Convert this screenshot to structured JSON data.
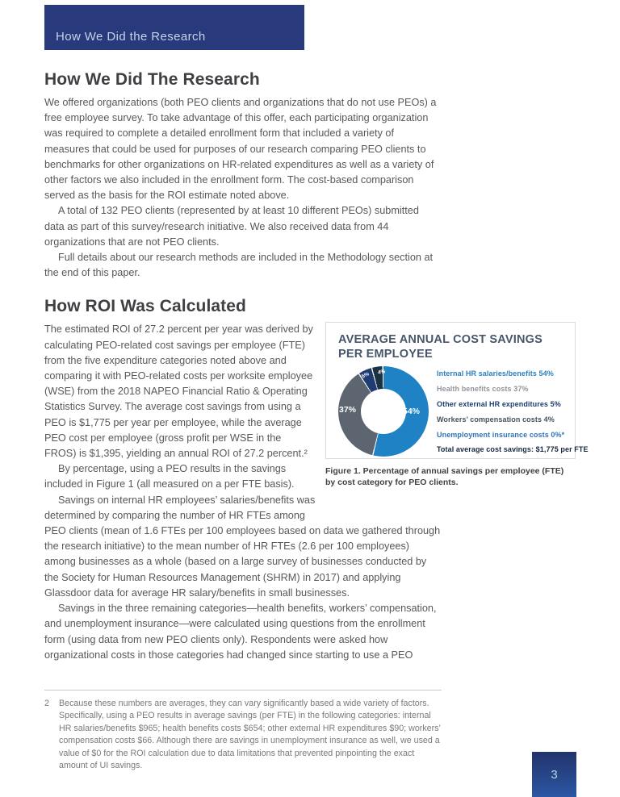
{
  "banner": {
    "label": "How We Did the Research"
  },
  "section1": {
    "heading": "How We Did The Research",
    "p1": "We offered organizations (both PEO clients and organizations that do not use PEOs) a free employee survey. To take advantage of this offer, each participating organization was required to complete a detailed enrollment form that included a variety of measures that could be used for purposes of our research comparing PEO clients to benchmarks for other organizations on HR-related expenditures as well as a variety of other factors we also included in the enrollment form. The cost-based comparison served as the basis for the ROI estimate noted above.",
    "p2": "A total of 132 PEO clients (represented by at least 10 different PEOs) submitted data as part of this survey/research initiative. We also received data from 44 organizations that are not PEO clients.",
    "p3": "Full details about our research methods are included in the Methodology section at the end of this paper."
  },
  "section2": {
    "heading": "How ROI Was Calculated",
    "p1": "The estimated ROI of 27.2 percent per year was derived by calculating PEO-related cost savings per employee (FTE) from the five expenditure categories noted above and comparing it with PEO-related costs per worksite employee (WSE) from the 2018 NAPEO Financial Ratio & Operating Statistics Survey. The average cost savings from using a PEO is $1,775 per year per employee, while the average PEO cost per employee (gross profit per WSE in the FROS) is $1,395, yielding an annual ROI of 27.2 percent.²",
    "p2": "By percentage, using a PEO results in the savings included in Figure 1 (all measured on a per FTE basis).",
    "p3": "Savings on internal HR employees’ salaries/benefits was determined by comparing the number of HR FTEs among PEO clients (mean of 1.6 FTEs per 100 employees based on data we gathered through the research initiative) to the mean number of HR FTEs (2.6 per 100 employees) among businesses as a whole (based on a large survey of businesses conducted by the Society for Human Resources Management (SHRM) in 2017) and applying Glassdoor data for average HR salary/benefits in small businesses.",
    "p4": "Savings in the three remaining categories—health benefits, workers’ compensation, and unemployment insurance—were calculated using questions from the enrollment form (using data from new PEO clients only). Respondents were asked how organizational costs in those categories had changed since starting to use a PEO"
  },
  "figure": {
    "title": "AVERAGE ANNUAL COST SAVINGS PER EMPLOYEE",
    "slice_labels": [
      "54%",
      "37%",
      "5%",
      "4%"
    ],
    "legend": [
      "Internal HR salaries/benefits 54%",
      "Health benefits costs 37%",
      "Other external HR expenditures 5%",
      "Workers’ compensation costs 4%",
      "Unemployment insurance costs 0%*",
      "Total average cost savings: $1,775 per FTE"
    ],
    "legend_colors": [
      "#2a80c1",
      "#90959b",
      "#1f3d72",
      "#47525e",
      "#2e74b5",
      "#16283e"
    ],
    "caption": "Figure 1. Percentage of annual savings per employee (FTE) by cost category for PEO clients."
  },
  "chart_data": {
    "type": "pie",
    "subtype": "donut",
    "title": "AVERAGE ANNUAL COST SAVINGS PER EMPLOYEE",
    "categories": [
      "Internal HR salaries/benefits",
      "Health benefits costs",
      "Other external HR expenditures",
      "Workers' compensation costs",
      "Unemployment insurance costs"
    ],
    "values": [
      54,
      37,
      5,
      4,
      0
    ],
    "colors": [
      "#1e82c4",
      "#5d6670",
      "#1f3d72",
      "#1b3242",
      "#2e74b5"
    ],
    "legend_position": "right",
    "note": "Total average cost savings: $1,775 per FTE"
  },
  "footnote": {
    "number": "2",
    "text": "Because these numbers are averages, they can vary significantly based a wide variety of factors. Specifically, using a PEO results in average savings (per FTE) in the following categories: internal HR salaries/benefits $965; health benefits costs $654; other external HR expenditures $90; workers’ compensation costs $66. Although there are savings in unemployment insurance as well, we used a value of $0 for the ROI calculation due to data limitations that prevented pinpointing the exact amount of UI savings."
  },
  "page_number": "3"
}
